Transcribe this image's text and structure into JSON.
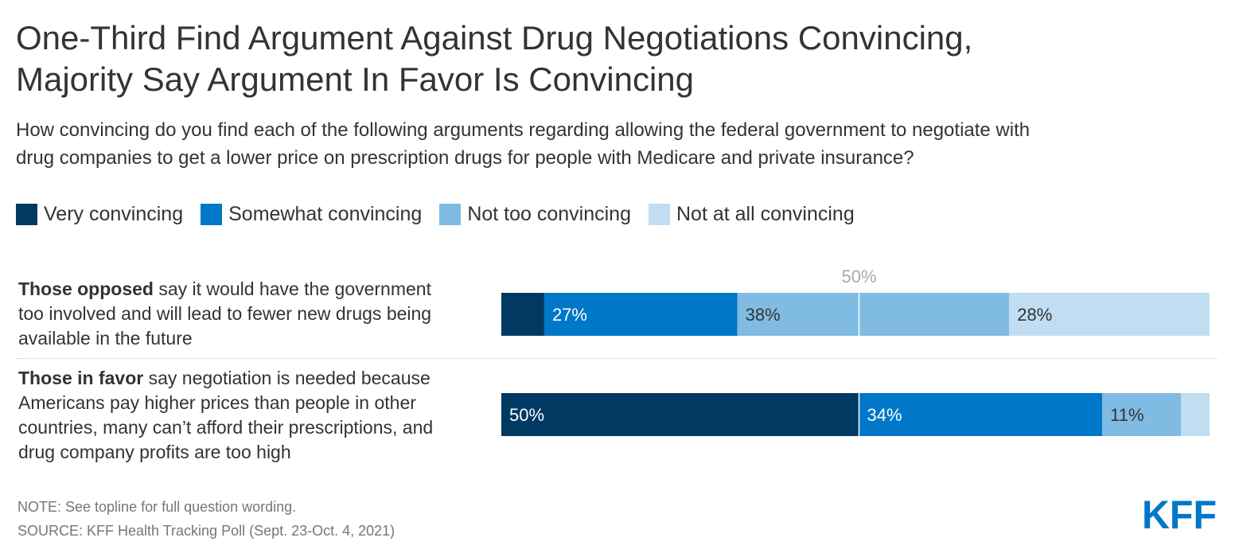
{
  "chart_data": {
    "type": "bar",
    "orientation": "horizontal",
    "stacked": true,
    "title_lines": [
      "One-Third Find Argument Against Drug Negotiations Convincing,",
      "Majority Say Argument In Favor Is Convincing"
    ],
    "subtitle_lines": [
      "How convincing do you find each of the following arguments regarding allowing the federal government to negotiate with",
      "drug companies to get a lower price on prescription drugs for people with Medicare and private insurance?"
    ],
    "series": [
      {
        "name": "Very convincing",
        "color": "#003a63"
      },
      {
        "name": "Somewhat convincing",
        "color": "#0077c8"
      },
      {
        "name": "Not too convincing",
        "color": "#7fbbe3"
      },
      {
        "name": "Not at all convincing",
        "color": "#c0ddf1"
      }
    ],
    "categories": [
      {
        "label_bold": "Those opposed",
        "label_rest": " say it would have the government too involved and will lead to fewer new drugs being available in the future",
        "label_lines": [
          "say it would have the government",
          "too involved and will lead to fewer new drugs being",
          "available in the future"
        ],
        "values": [
          6,
          27,
          38,
          28
        ],
        "data_labels": [
          "",
          "27%",
          "38%",
          "28%"
        ]
      },
      {
        "label_bold": "Those in favor",
        "label_rest": " say negotiation is needed because Americans pay higher prices than people in other countries, many can’t afford their prescriptions, and drug company profits are too high",
        "label_lines": [
          "say negotiation is needed because",
          "Americans pay higher prices than people in other",
          "countries, many can’t afford their prescriptions, and",
          "drug company profits are too high"
        ],
        "values": [
          50,
          34,
          11,
          4
        ],
        "data_labels": [
          "50%",
          "34%",
          "11%",
          ""
        ]
      }
    ],
    "xlim": [
      0,
      99
    ],
    "reference_line": {
      "value": 50,
      "label": "50%"
    },
    "notes": [
      "NOTE: See topline for full question wording.",
      "SOURCE: KFF Health Tracking Poll (Sept. 23-Oct. 4, 2021)"
    ],
    "logo_text": "KFF",
    "colors": {
      "logo": "#0077c8",
      "reference_line": "#ffffff",
      "reference_label": "#aaaaaa"
    }
  }
}
